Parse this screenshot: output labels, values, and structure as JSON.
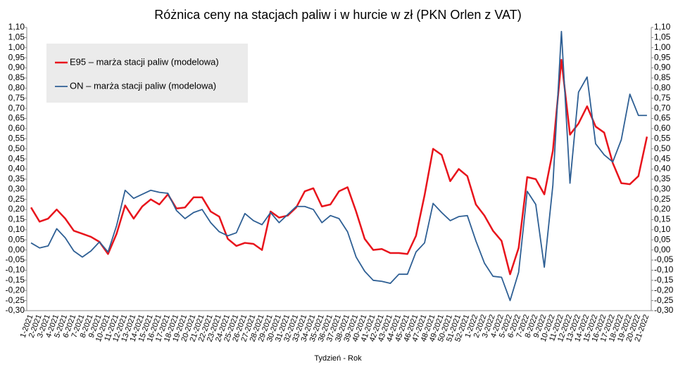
{
  "chart_data": {
    "type": "line",
    "title": "Różnica ceny na stacjach paliw i w hurcie w zł (PKN Orlen z VAT)",
    "x_label": "Tydzień - Rok",
    "categories": [
      "1-2021",
      "2-2021",
      "3-2021",
      "4-2021",
      "5-2021",
      "6-2021",
      "7-2021",
      "8-2021",
      "9-2021",
      "10-2021",
      "11-2021",
      "12-2021",
      "13-2021",
      "14-2021",
      "15-2021",
      "16-2021",
      "17-2021",
      "18-2021",
      "19-2021",
      "20-2021",
      "21-2021",
      "22-2021",
      "23-2021",
      "24-2021",
      "25-2021",
      "26-2021",
      "27-2021",
      "28-2021",
      "29-2021",
      "30-2021",
      "31-2021",
      "32-2021",
      "33-2021",
      "34-2021",
      "35-2021",
      "36-2021",
      "37-2021",
      "38-2021",
      "39-2021",
      "40-2021",
      "41-2021",
      "42-2021",
      "43-2021",
      "44-2021",
      "45-2021",
      "46-2021",
      "47-2021",
      "48-2021",
      "49-2021",
      "50-2021",
      "51-2021",
      "52-2021",
      "1-2022",
      "2-2022",
      "3-2022",
      "4-2022",
      "5-2022",
      "6-2022",
      "7-2022",
      "8-2022",
      "9-2022",
      "10-2022",
      "11-2022",
      "12-2022",
      "13-2022",
      "14-2022",
      "15-2022",
      "16-2022",
      "17-2022",
      "18-2022",
      "19-2022",
      "20-2022",
      "21-2022"
    ],
    "series": [
      {
        "name": "E95 – marża stacji paliw (modelowa)",
        "color": "#e8141c",
        "values": [
          0.21,
          0.14,
          0.155,
          0.2,
          0.155,
          0.095,
          0.08,
          0.065,
          0.04,
          -0.02,
          0.08,
          0.22,
          0.155,
          0.215,
          0.25,
          0.225,
          0.275,
          0.205,
          0.21,
          0.26,
          0.26,
          0.19,
          0.165,
          0.055,
          0.02,
          0.035,
          0.03,
          0.0,
          0.19,
          0.16,
          0.17,
          0.21,
          0.29,
          0.305,
          0.215,
          0.225,
          0.29,
          0.31,
          0.19,
          0.055,
          0.0,
          0.005,
          -0.015,
          -0.015,
          -0.02,
          0.07,
          0.27,
          0.5,
          0.47,
          0.34,
          0.4,
          0.365,
          0.225,
          0.17,
          0.095,
          0.045,
          -0.12,
          0.01,
          0.36,
          0.35,
          0.275,
          0.49,
          0.94,
          0.57,
          0.625,
          0.71,
          0.61,
          0.58,
          0.43,
          0.33,
          0.325,
          0.365,
          0.56
        ]
      },
      {
        "name": "ON – marża stacji paliw (modelowa)",
        "color": "#2e5f94",
        "values": [
          0.035,
          0.01,
          0.02,
          0.105,
          0.06,
          -0.005,
          -0.035,
          -0.005,
          0.04,
          -0.01,
          0.12,
          0.295,
          0.255,
          0.275,
          0.295,
          0.285,
          0.28,
          0.195,
          0.155,
          0.185,
          0.2,
          0.135,
          0.09,
          0.07,
          0.085,
          0.18,
          0.145,
          0.125,
          0.185,
          0.135,
          0.175,
          0.215,
          0.215,
          0.2,
          0.135,
          0.17,
          0.155,
          0.09,
          -0.035,
          -0.105,
          -0.15,
          -0.155,
          -0.165,
          -0.12,
          -0.12,
          -0.01,
          0.035,
          0.23,
          0.185,
          0.145,
          0.165,
          0.17,
          0.045,
          -0.065,
          -0.13,
          -0.135,
          -0.25,
          -0.11,
          0.29,
          0.225,
          -0.085,
          0.32,
          1.08,
          0.33,
          0.78,
          0.855,
          0.525,
          0.47,
          0.435,
          0.545,
          0.77,
          0.665,
          0.665
        ]
      }
    ],
    "ylim": [
      -0.3,
      1.1
    ],
    "yticks": [
      {
        "value": -0.3,
        "label": "-0,30"
      },
      {
        "value": -0.25,
        "label": "-0,25"
      },
      {
        "value": -0.2,
        "label": "-0,20"
      },
      {
        "value": -0.15,
        "label": "-0,15"
      },
      {
        "value": -0.1,
        "label": "-0,10"
      },
      {
        "value": -0.05,
        "label": "-0,05"
      },
      {
        "value": 0,
        "label": "0,00"
      },
      {
        "value": 0.05,
        "label": "0,05"
      },
      {
        "value": 0.1,
        "label": "0,10"
      },
      {
        "value": 0.15,
        "label": "0,15"
      },
      {
        "value": 0.2,
        "label": "0,20"
      },
      {
        "value": 0.25,
        "label": "0,25"
      },
      {
        "value": 0.3,
        "label": "0,30"
      },
      {
        "value": 0.35,
        "label": "0,35"
      },
      {
        "value": 0.4,
        "label": "0,40"
      },
      {
        "value": 0.45,
        "label": "0,45"
      },
      {
        "value": 0.5,
        "label": "0,50"
      },
      {
        "value": 0.55,
        "label": "0,55"
      },
      {
        "value": 0.6,
        "label": "0,60"
      },
      {
        "value": 0.65,
        "label": "0,65"
      },
      {
        "value": 0.7,
        "label": "0,70"
      },
      {
        "value": 0.75,
        "label": "0,75"
      },
      {
        "value": 0.8,
        "label": "0,80"
      },
      {
        "value": 0.85,
        "label": "0,85"
      },
      {
        "value": 0.9,
        "label": "0,90"
      },
      {
        "value": 0.95,
        "label": "0,95"
      },
      {
        "value": 1.0,
        "label": "1,00"
      },
      {
        "value": 1.05,
        "label": "1,05"
      },
      {
        "value": 1.1,
        "label": "1,10"
      }
    ],
    "y2lim": [
      -0.3,
      1.1
    ],
    "y2ticks": [
      {
        "value": -0.3,
        "label": "-0,30"
      },
      {
        "value": -0.25,
        "label": "-0,25"
      },
      {
        "value": -0.2,
        "label": "-0,20"
      },
      {
        "value": -0.15,
        "label": "-0,15"
      },
      {
        "value": -0.1,
        "label": "-0,10"
      },
      {
        "value": -0.05,
        "label": "-0,05"
      },
      {
        "value": 0,
        "label": "0,00"
      },
      {
        "value": 0.05,
        "label": "0,05"
      },
      {
        "value": 0.1,
        "label": "0,10"
      },
      {
        "value": 0.15,
        "label": "0,15"
      },
      {
        "value": 0.2,
        "label": "0,20"
      },
      {
        "value": 0.25,
        "label": "0,25"
      },
      {
        "value": 0.3,
        "label": "0,30"
      },
      {
        "value": 0.35,
        "label": "0,35"
      },
      {
        "value": 0.4,
        "label": "0,40"
      },
      {
        "value": 0.45,
        "label": "0,45"
      },
      {
        "value": 0.5,
        "label": "0,50"
      },
      {
        "value": 0.55,
        "label": "0,55"
      },
      {
        "value": 0.6,
        "label": "0,60"
      },
      {
        "value": 0.65,
        "label": "0,65"
      },
      {
        "value": 0.7,
        "label": "0,70"
      },
      {
        "value": 0.75,
        "label": "0,75"
      },
      {
        "value": 0.8,
        "label": "0,80"
      },
      {
        "value": 0.85,
        "label": "0,85"
      },
      {
        "value": 0.9,
        "label": "0,90"
      },
      {
        "value": 0.95,
        "label": "0,95"
      },
      {
        "value": 1.0,
        "label": "1,00"
      },
      {
        "value": 1.05,
        "label": "1,05"
      },
      {
        "value": 1.1,
        "label": "1,10"
      }
    ],
    "grid": false,
    "legend": "upper left"
  }
}
